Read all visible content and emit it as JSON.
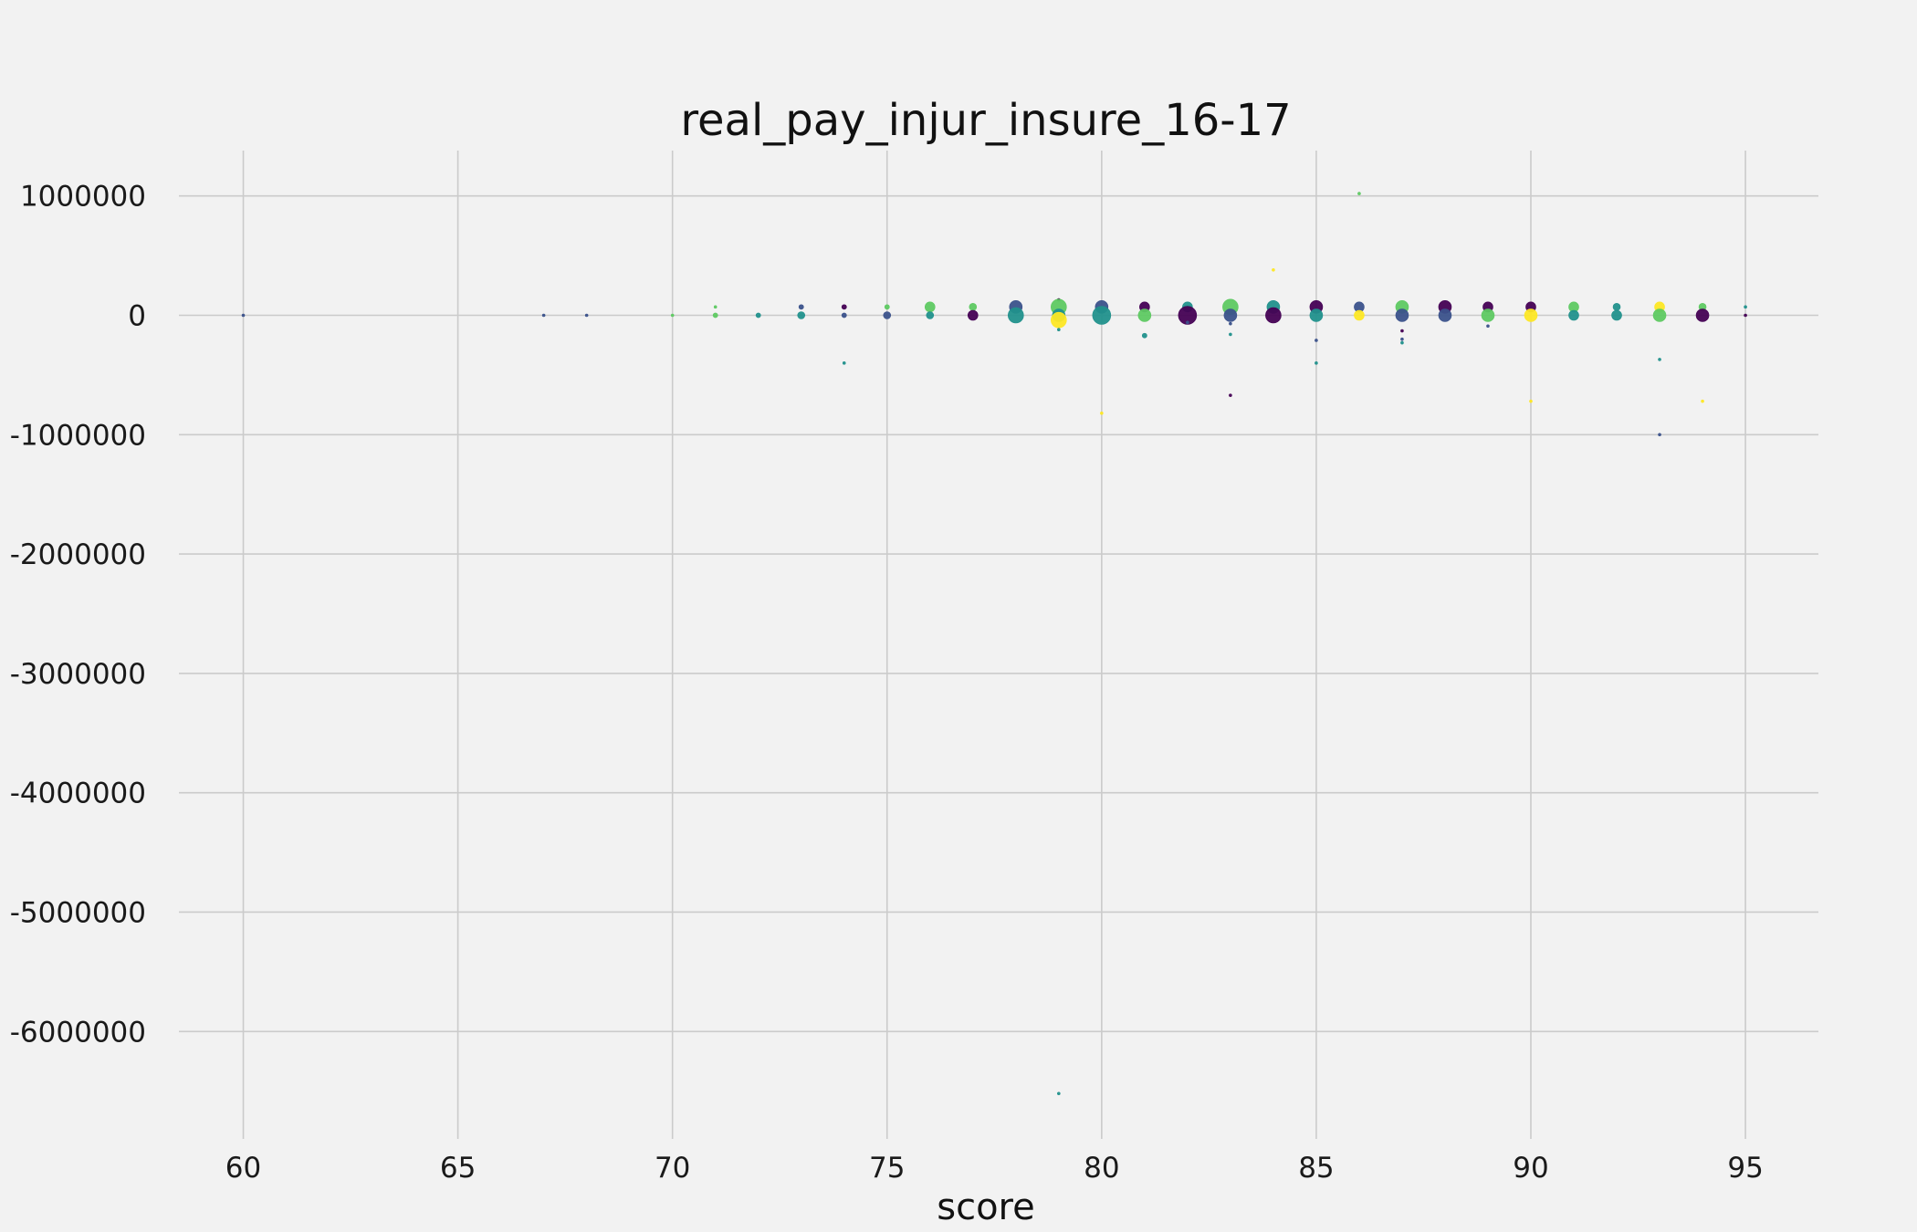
{
  "chart_data": {
    "type": "scatter",
    "title": "real_pay_injur_insure_16-17",
    "xlabel": "score",
    "ylabel": "",
    "xlim": [
      58.5,
      96.7
    ],
    "ylim": [
      -6900000,
      1380000
    ],
    "xticks": [
      60,
      65,
      70,
      75,
      80,
      85,
      90,
      95
    ],
    "yticks": [
      1000000,
      0,
      -1000000,
      -2000000,
      -3000000,
      -4000000,
      -5000000,
      -6000000
    ],
    "grid": true,
    "legend": "none",
    "palette": [
      "#440154",
      "#3b528b",
      "#21918c",
      "#5ec962",
      "#fde725"
    ],
    "points": [
      {
        "x": 60,
        "y": 0,
        "s": 1,
        "c": 1
      },
      {
        "x": 67,
        "y": 0,
        "s": 1,
        "c": 1
      },
      {
        "x": 68,
        "y": 0,
        "s": 1,
        "c": 1
      },
      {
        "x": 70,
        "y": 0,
        "s": 1,
        "c": 3
      },
      {
        "x": 71,
        "y": 70000,
        "s": 1,
        "c": 3
      },
      {
        "x": 71,
        "y": 0,
        "s": 2,
        "c": 3
      },
      {
        "x": 72,
        "y": 0,
        "s": 2,
        "c": 2
      },
      {
        "x": 73,
        "y": 70000,
        "s": 2,
        "c": 1
      },
      {
        "x": 73,
        "y": 0,
        "s": 3,
        "c": 2
      },
      {
        "x": 74,
        "y": 70000,
        "s": 2,
        "c": 0
      },
      {
        "x": 74,
        "y": 0,
        "s": 2,
        "c": 1
      },
      {
        "x": 74,
        "y": -400000,
        "s": 1,
        "c": 2
      },
      {
        "x": 75,
        "y": 70000,
        "s": 2,
        "c": 3
      },
      {
        "x": 75,
        "y": 0,
        "s": 3,
        "c": 1
      },
      {
        "x": 76,
        "y": 70000,
        "s": 4,
        "c": 3
      },
      {
        "x": 76,
        "y": 0,
        "s": 3,
        "c": 2
      },
      {
        "x": 77,
        "y": 70000,
        "s": 3,
        "c": 3
      },
      {
        "x": 77,
        "y": 0,
        "s": 4,
        "c": 0
      },
      {
        "x": 78,
        "y": 70000,
        "s": 5,
        "c": 1
      },
      {
        "x": 78,
        "y": 0,
        "s": 6,
        "c": 2
      },
      {
        "x": 79,
        "y": 130000,
        "s": 1,
        "c": 0
      },
      {
        "x": 79,
        "y": 70000,
        "s": 6,
        "c": 3
      },
      {
        "x": 79,
        "y": 0,
        "s": 5,
        "c": 2
      },
      {
        "x": 79,
        "y": -40000,
        "s": 6,
        "c": 4
      },
      {
        "x": 79,
        "y": -120000,
        "s": 1,
        "c": 2
      },
      {
        "x": 79,
        "y": -6520000,
        "s": 1,
        "c": 2
      },
      {
        "x": 80,
        "y": 70000,
        "s": 5,
        "c": 1
      },
      {
        "x": 80,
        "y": 0,
        "s": 7,
        "c": 2
      },
      {
        "x": 80,
        "y": -820000,
        "s": 1,
        "c": 4
      },
      {
        "x": 81,
        "y": 70000,
        "s": 4,
        "c": 0
      },
      {
        "x": 81,
        "y": 0,
        "s": 5,
        "c": 3
      },
      {
        "x": 81,
        "y": -170000,
        "s": 2,
        "c": 2
      },
      {
        "x": 82,
        "y": 70000,
        "s": 4,
        "c": 2
      },
      {
        "x": 82,
        "y": 0,
        "s": 7,
        "c": 0
      },
      {
        "x": 82,
        "y": -60000,
        "s": 1,
        "c": 1
      },
      {
        "x": 83,
        "y": 70000,
        "s": 6,
        "c": 3
      },
      {
        "x": 83,
        "y": 0,
        "s": 5,
        "c": 1
      },
      {
        "x": 83,
        "y": -70000,
        "s": 1,
        "c": 1
      },
      {
        "x": 83,
        "y": -160000,
        "s": 1,
        "c": 2
      },
      {
        "x": 83,
        "y": -670000,
        "s": 1,
        "c": 0
      },
      {
        "x": 84,
        "y": 380000,
        "s": 1,
        "c": 4
      },
      {
        "x": 84,
        "y": 70000,
        "s": 5,
        "c": 2
      },
      {
        "x": 84,
        "y": 0,
        "s": 6,
        "c": 0
      },
      {
        "x": 85,
        "y": 70000,
        "s": 5,
        "c": 0
      },
      {
        "x": 85,
        "y": 0,
        "s": 5,
        "c": 2
      },
      {
        "x": 85,
        "y": -210000,
        "s": 1,
        "c": 1
      },
      {
        "x": 85,
        "y": -400000,
        "s": 1,
        "c": 2
      },
      {
        "x": 86,
        "y": 1020000,
        "s": 1,
        "c": 3
      },
      {
        "x": 86,
        "y": 70000,
        "s": 4,
        "c": 1
      },
      {
        "x": 86,
        "y": 0,
        "s": 4,
        "c": 4
      },
      {
        "x": 87,
        "y": 70000,
        "s": 5,
        "c": 3
      },
      {
        "x": 87,
        "y": 0,
        "s": 5,
        "c": 1
      },
      {
        "x": 87,
        "y": -130000,
        "s": 1,
        "c": 0
      },
      {
        "x": 87,
        "y": -200000,
        "s": 1,
        "c": 1
      },
      {
        "x": 87,
        "y": -230000,
        "s": 1,
        "c": 2
      },
      {
        "x": 88,
        "y": 70000,
        "s": 5,
        "c": 0
      },
      {
        "x": 88,
        "y": 0,
        "s": 5,
        "c": 1
      },
      {
        "x": 89,
        "y": 70000,
        "s": 4,
        "c": 0
      },
      {
        "x": 89,
        "y": 0,
        "s": 5,
        "c": 3
      },
      {
        "x": 89,
        "y": -90000,
        "s": 1,
        "c": 1
      },
      {
        "x": 90,
        "y": 70000,
        "s": 4,
        "c": 0
      },
      {
        "x": 90,
        "y": 0,
        "s": 5,
        "c": 4
      },
      {
        "x": 90,
        "y": -720000,
        "s": 1,
        "c": 4
      },
      {
        "x": 91,
        "y": 70000,
        "s": 4,
        "c": 3
      },
      {
        "x": 91,
        "y": 0,
        "s": 4,
        "c": 2
      },
      {
        "x": 92,
        "y": 70000,
        "s": 3,
        "c": 2
      },
      {
        "x": 92,
        "y": 0,
        "s": 4,
        "c": 2
      },
      {
        "x": 93,
        "y": 70000,
        "s": 4,
        "c": 4
      },
      {
        "x": 93,
        "y": 0,
        "s": 5,
        "c": 3
      },
      {
        "x": 93,
        "y": -370000,
        "s": 1,
        "c": 2
      },
      {
        "x": 93,
        "y": -1000000,
        "s": 1,
        "c": 1
      },
      {
        "x": 94,
        "y": 70000,
        "s": 3,
        "c": 3
      },
      {
        "x": 94,
        "y": 0,
        "s": 5,
        "c": 0
      },
      {
        "x": 94,
        "y": -720000,
        "s": 1,
        "c": 4
      },
      {
        "x": 95,
        "y": 70000,
        "s": 1,
        "c": 2
      },
      {
        "x": 95,
        "y": 0,
        "s": 1,
        "c": 0
      }
    ]
  }
}
